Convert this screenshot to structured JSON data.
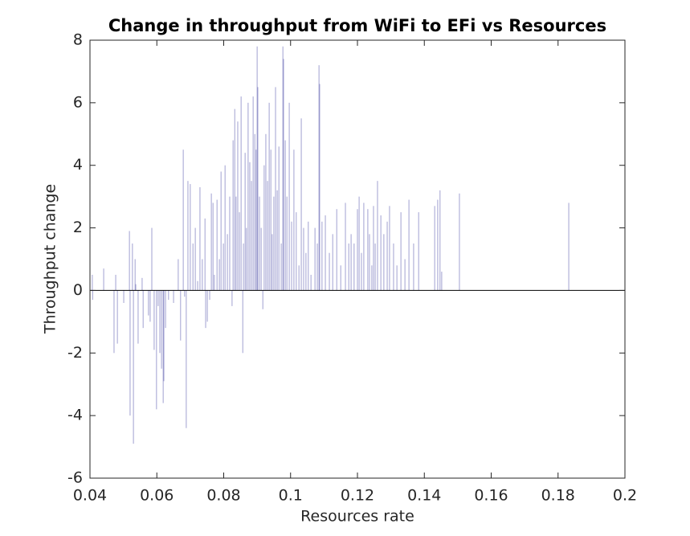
{
  "chart_data": {
    "type": "bar",
    "title": "Change in throughput from WiFi to EFi vs Resources",
    "xlabel": "Resources rate",
    "ylabel": "Throughput change",
    "color": "#2e2e9a",
    "xlim": [
      0.04,
      0.2
    ],
    "xticks": [
      0.04,
      0.06,
      0.08,
      0.1,
      0.12,
      0.14,
      0.16,
      0.18,
      0.2
    ],
    "ylim": [
      -6,
      8
    ],
    "yticks": [
      -6,
      -4,
      -2,
      0,
      2,
      4,
      6,
      8
    ],
    "grid": false,
    "x": [
      0.0407,
      0.0408,
      0.0441,
      0.0472,
      0.0477,
      0.0482,
      0.0501,
      0.0518,
      0.052,
      0.0527,
      0.053,
      0.0535,
      0.0537,
      0.0544,
      0.0556,
      0.0559,
      0.0575,
      0.058,
      0.0585,
      0.0592,
      0.0599,
      0.0604,
      0.0609,
      0.0614,
      0.0619,
      0.0621,
      0.0626,
      0.0635,
      0.065,
      0.0664,
      0.0671,
      0.0679,
      0.0683,
      0.0688,
      0.0693,
      0.07,
      0.0708,
      0.0715,
      0.0722,
      0.0729,
      0.0736,
      0.0744,
      0.0746,
      0.0751,
      0.0758,
      0.0763,
      0.0768,
      0.0772,
      0.078,
      0.0787,
      0.0792,
      0.0799,
      0.0804,
      0.0811,
      0.0818,
      0.0825,
      0.0828,
      0.0833,
      0.0837,
      0.0842,
      0.0847,
      0.0852,
      0.0857,
      0.0859,
      0.0864,
      0.0868,
      0.0873,
      0.0878,
      0.0883,
      0.0888,
      0.0893,
      0.0897,
      0.09,
      0.0902,
      0.0907,
      0.0912,
      0.0917,
      0.0921,
      0.0926,
      0.0931,
      0.0936,
      0.0941,
      0.0945,
      0.095,
      0.0955,
      0.096,
      0.0965,
      0.0972,
      0.0977,
      0.0979,
      0.0984,
      0.0989,
      0.0996,
      0.1003,
      0.101,
      0.1017,
      0.1025,
      0.1032,
      0.1039,
      0.1046,
      0.1053,
      0.1061,
      0.1073,
      0.108,
      0.1085,
      0.1087,
      0.1094,
      0.1104,
      0.1116,
      0.1126,
      0.1138,
      0.115,
      0.1164,
      0.1174,
      0.1181,
      0.119,
      0.12,
      0.1205,
      0.1212,
      0.1219,
      0.1231,
      0.1236,
      0.1243,
      0.1248,
      0.1253,
      0.126,
      0.127,
      0.1279,
      0.1289,
      0.1296,
      0.1308,
      0.1318,
      0.133,
      0.1342,
      0.1354,
      0.1368,
      0.1383,
      0.1431,
      0.144,
      0.1447,
      0.1452,
      0.1505,
      0.1832
    ],
    "values": [
      0.5,
      -0.3,
      0.7,
      -2.0,
      0.5,
      -1.7,
      -0.4,
      1.9,
      -4.0,
      1.5,
      -4.9,
      1.0,
      0.2,
      -1.7,
      0.4,
      -1.2,
      -0.8,
      -1.0,
      2.0,
      -1.9,
      -3.8,
      -0.5,
      -2.0,
      -2.5,
      -3.6,
      -2.9,
      -1.2,
      -0.3,
      -0.4,
      1.0,
      -1.6,
      4.5,
      -0.2,
      -4.4,
      3.5,
      3.4,
      1.5,
      2.0,
      0.3,
      3.3,
      1.0,
      2.3,
      -1.2,
      -1.0,
      -0.3,
      3.1,
      2.8,
      0.5,
      2.9,
      1.0,
      3.8,
      1.5,
      4.0,
      1.8,
      3.0,
      -0.5,
      4.8,
      5.8,
      3.0,
      5.4,
      2.5,
      6.2,
      -2.0,
      1.5,
      4.4,
      2.0,
      6.0,
      4.1,
      3.5,
      6.2,
      5.0,
      4.5,
      7.8,
      6.5,
      3.0,
      2.0,
      -0.6,
      4.0,
      5.0,
      3.5,
      6.0,
      4.5,
      1.8,
      3.0,
      6.5,
      3.2,
      4.6,
      1.5,
      7.8,
      7.4,
      4.8,
      3.0,
      6.0,
      2.2,
      4.5,
      2.5,
      0.8,
      5.5,
      2.0,
      1.2,
      2.2,
      0.5,
      2.0,
      1.5,
      7.2,
      6.6,
      2.2,
      2.4,
      1.2,
      1.8,
      2.6,
      0.8,
      2.8,
      1.5,
      1.8,
      1.5,
      2.6,
      3.0,
      1.2,
      2.8,
      2.6,
      1.8,
      0.8,
      2.7,
      1.5,
      3.5,
      2.4,
      1.8,
      2.2,
      2.7,
      1.5,
      0.8,
      2.5,
      1.0,
      2.9,
      1.5,
      2.5,
      2.7,
      2.9,
      3.2,
      0.6,
      3.1,
      2.8
    ]
  }
}
